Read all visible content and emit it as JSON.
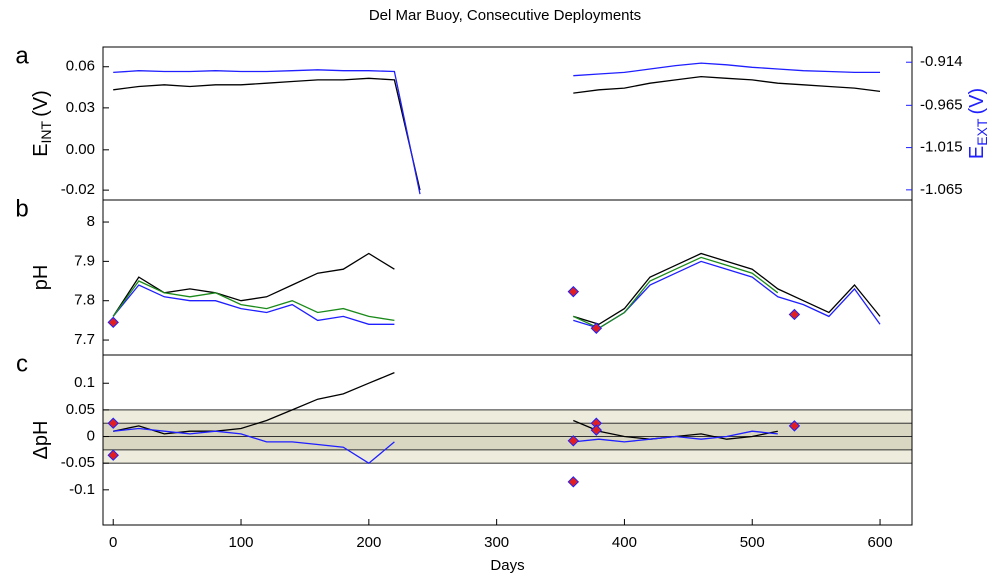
{
  "chart_data": [
    {
      "type": "line",
      "panel_label": "a",
      "title": "Del Mar Buoy, Consecutive Deployments",
      "ylabel": "E",
      "ylabel_sub": "INT",
      "ylabel_unit": "(V)",
      "y2label": "E",
      "y2label_sub": "EXT",
      "y2label_unit": "(V)",
      "y2color": "#1f1fff",
      "x": [
        0,
        20,
        40,
        60,
        80,
        100,
        120,
        140,
        160,
        180,
        200,
        220,
        240,
        260,
        280,
        300,
        320,
        340,
        360,
        380,
        400,
        420,
        440,
        460,
        480,
        500,
        520,
        540,
        560,
        580,
        600
      ],
      "xlim": [
        -8,
        625
      ],
      "ylim": [
        -0.026,
        0.067
      ],
      "yticks": [
        -0.02,
        {
          "value": 0.0045,
          "label": "0.00"
        },
        0.03,
        {
          "value": 0.055,
          "label": "0.06"
        }
      ],
      "y2lim": [
        -1.077,
        -0.896
      ],
      "y2ticks": [
        -1.065,
        -1.015,
        -0.965,
        -0.914
      ],
      "series": [
        {
          "color": "#000000",
          "values": [
            0.041,
            0.043,
            0.044,
            0.043,
            0.044,
            0.044,
            0.045,
            0.046,
            0.047,
            0.047,
            0.048,
            0.047,
            -0.02,
            null,
            null,
            null,
            null,
            null,
            0.039,
            0.041,
            0.042,
            0.045,
            0.047,
            0.049,
            0.048,
            0.047,
            0.045,
            0.044,
            0.043,
            0.042,
            0.04
          ]
        },
        {
          "color": "#1f1fff",
          "axis": "y2",
          "values": [
            -0.926,
            -0.924,
            -0.925,
            -0.925,
            -0.924,
            -0.925,
            -0.925,
            -0.924,
            -0.923,
            -0.924,
            -0.924,
            -0.925,
            -1.07,
            null,
            null,
            null,
            null,
            null,
            -0.93,
            -0.928,
            -0.926,
            -0.922,
            -0.918,
            -0.915,
            -0.917,
            -0.92,
            -0.922,
            -0.924,
            -0.925,
            -0.926,
            -0.926
          ]
        }
      ]
    },
    {
      "type": "line",
      "panel_label": "b",
      "ylabel": "pH",
      "x": [
        0,
        20,
        40,
        60,
        80,
        100,
        120,
        140,
        160,
        180,
        200,
        220,
        240,
        260,
        280,
        300,
        320,
        340,
        360,
        380,
        400,
        420,
        440,
        460,
        480,
        500,
        520,
        540,
        560,
        580,
        600
      ],
      "xlim": [
        -8,
        625
      ],
      "ylim": [
        7.662,
        8.056
      ],
      "yticks": [
        7.7,
        7.8,
        7.9,
        8
      ],
      "series": [
        {
          "color": "#000000",
          "values": [
            7.76,
            7.86,
            7.82,
            7.83,
            7.82,
            7.8,
            7.81,
            7.84,
            7.87,
            7.88,
            7.92,
            7.88,
            null,
            null,
            null,
            null,
            null,
            null,
            7.76,
            7.74,
            7.78,
            7.86,
            7.89,
            7.92,
            7.9,
            7.88,
            7.83,
            7.8,
            7.77,
            7.84,
            7.76
          ]
        },
        {
          "color": "#1f1fff",
          "values": [
            7.76,
            7.84,
            7.81,
            7.8,
            7.8,
            7.78,
            7.77,
            7.79,
            7.75,
            7.76,
            7.74,
            7.74,
            null,
            null,
            null,
            null,
            null,
            null,
            7.75,
            7.73,
            7.77,
            7.84,
            7.87,
            7.9,
            7.88,
            7.86,
            7.81,
            7.79,
            7.76,
            7.83,
            7.74
          ]
        },
        {
          "color": "#1a8a1a",
          "values": [
            7.76,
            7.85,
            7.82,
            7.81,
            7.82,
            7.79,
            7.78,
            7.8,
            7.77,
            7.78,
            7.76,
            7.75,
            null,
            null,
            null,
            null,
            null,
            null,
            7.76,
            7.73,
            7.77,
            7.85,
            7.88,
            7.91,
            7.89,
            7.87,
            7.82,
            null,
            null,
            null,
            null
          ]
        }
      ],
      "markers": {
        "color": "#e02020",
        "edge": "#1f1fff",
        "x": [
          0,
          360,
          378,
          533
        ],
        "values": [
          7.745,
          7.823,
          7.73,
          7.765
        ]
      }
    },
    {
      "type": "line",
      "panel_label": "c",
      "ylabel": "ΔpH",
      "xlabel": "Days",
      "x": [
        0,
        20,
        40,
        60,
        80,
        100,
        120,
        140,
        160,
        180,
        200,
        220,
        240,
        260,
        280,
        300,
        320,
        340,
        360,
        380,
        400,
        420,
        440,
        460,
        480,
        500,
        520,
        540,
        560,
        580,
        600
      ],
      "xlim": [
        -8,
        625
      ],
      "xticks": [
        0,
        100,
        200,
        300,
        400,
        500,
        600
      ],
      "ylim": [
        -0.166,
        0.153
      ],
      "yticks": [
        -0.1,
        -0.05,
        0,
        0.05,
        0.1
      ],
      "bands": [
        {
          "range": [
            -0.05,
            0.05
          ],
          "color": "#eeecdc"
        },
        {
          "range": [
            -0.025,
            0.025
          ],
          "color": "#d9d6c2"
        }
      ],
      "hlines": [
        0
      ],
      "series": [
        {
          "color": "#000000",
          "values": [
            0.01,
            0.02,
            0.005,
            0.01,
            0.01,
            0.015,
            0.03,
            0.05,
            0.07,
            0.08,
            0.1,
            0.12,
            null,
            null,
            null,
            null,
            null,
            null,
            0.03,
            0.01,
            0,
            -0.005,
            0,
            0.005,
            -0.005,
            0,
            0.01,
            null,
            null,
            null,
            null
          ]
        },
        {
          "color": "#1f1fff",
          "values": [
            0.01,
            0.015,
            0.01,
            0.005,
            0.01,
            0.005,
            -0.01,
            -0.01,
            -0.015,
            -0.02,
            -0.05,
            -0.01,
            null,
            null,
            null,
            null,
            null,
            null,
            -0.01,
            -0.005,
            -0.01,
            -0.005,
            0,
            -0.005,
            0,
            0.01,
            0.005,
            null,
            null,
            null,
            null
          ]
        }
      ],
      "markers": {
        "color": "#e02020",
        "edge": "#1f1fff",
        "x": [
          0,
          0,
          360,
          360,
          378,
          378,
          533
        ],
        "values": [
          0.025,
          -0.035,
          -0.008,
          -0.085,
          0.025,
          0.012,
          0.02
        ]
      }
    }
  ]
}
